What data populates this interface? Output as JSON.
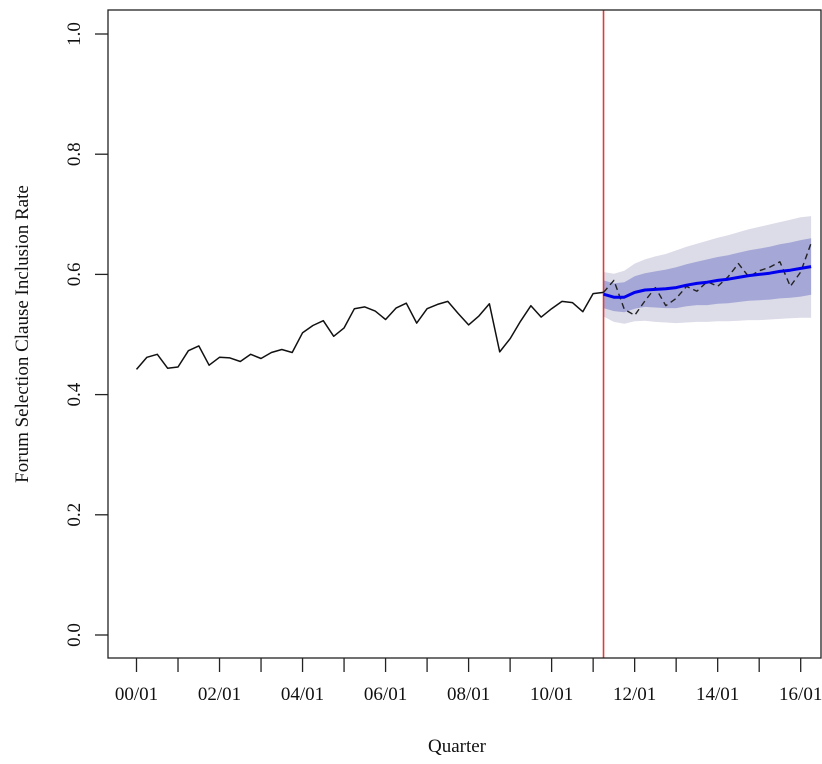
{
  "chart_data": {
    "type": "line",
    "title": "",
    "xlabel": "Quarter",
    "ylabel": "Forum Selection Clause Inclusion Rate",
    "xlim": [
      2000.0,
      2016.5
    ],
    "ylim": [
      0.0,
      1.0
    ],
    "x_ticks": [
      {
        "value": 2000.0,
        "label": "00/01"
      },
      {
        "value": 2002.0,
        "label": "02/01"
      },
      {
        "value": 2004.0,
        "label": "04/01"
      },
      {
        "value": 2006.0,
        "label": "06/01"
      },
      {
        "value": 2008.0,
        "label": "08/01"
      },
      {
        "value": 2010.0,
        "label": "10/01"
      },
      {
        "value": 2012.0,
        "label": "12/01"
      },
      {
        "value": 2014.0,
        "label": "14/01"
      },
      {
        "value": 2016.0,
        "label": "16/01"
      }
    ],
    "x_minor_ticks": [
      2001.0,
      2003.0,
      2005.0,
      2007.0,
      2009.0,
      2011.0,
      2013.0,
      2015.0
    ],
    "y_ticks": [
      {
        "value": 0.0,
        "label": "0.0"
      },
      {
        "value": 0.2,
        "label": "0.2"
      },
      {
        "value": 0.4,
        "label": "0.4"
      },
      {
        "value": 0.6,
        "label": "0.6"
      },
      {
        "value": 0.8,
        "label": "0.8"
      },
      {
        "value": 1.0,
        "label": "1.0"
      }
    ],
    "grid": false,
    "colors": {
      "observed": "#111111",
      "post_observed": "#222222",
      "forecast": "#0000ee",
      "band_outer": "#dcdbe8",
      "band_inner": "#a5a7d6",
      "cutoff_line": "#e03c3c"
    },
    "cutoff_x": 2011.25,
    "series": [
      {
        "style": "solid",
        "x": [
          2000.0,
          2000.25,
          2000.5,
          2000.75,
          2001.0,
          2001.25,
          2001.5,
          2001.75,
          2002.0,
          2002.25,
          2002.5,
          2002.75,
          2003.0,
          2003.25,
          2003.5,
          2003.75,
          2004.0,
          2004.25,
          2004.5,
          2004.75,
          2005.0,
          2005.25,
          2005.5,
          2005.75,
          2006.0,
          2006.25,
          2006.5,
          2006.75,
          2007.0,
          2007.25,
          2007.5,
          2007.75,
          2008.0,
          2008.25,
          2008.5,
          2008.75,
          2009.0,
          2009.25,
          2009.5,
          2009.75,
          2010.0,
          2010.25,
          2010.5,
          2010.75,
          2011.0,
          2011.25
        ],
        "y": [
          0.442,
          0.462,
          0.467,
          0.444,
          0.446,
          0.473,
          0.481,
          0.449,
          0.462,
          0.461,
          0.455,
          0.467,
          0.46,
          0.47,
          0.475,
          0.47,
          0.503,
          0.515,
          0.523,
          0.497,
          0.511,
          0.543,
          0.546,
          0.539,
          0.525,
          0.544,
          0.552,
          0.519,
          0.543,
          0.55,
          0.555,
          0.535,
          0.516,
          0.531,
          0.551,
          0.471,
          0.493,
          0.522,
          0.548,
          0.529,
          0.543,
          0.555,
          0.553,
          0.538,
          0.568,
          0.57
        ]
      },
      {
        "style": "dashed",
        "x": [
          2011.25,
          2011.5,
          2011.75,
          2012.0,
          2012.25,
          2012.5,
          2012.75,
          2013.0,
          2013.25,
          2013.5,
          2013.75,
          2014.0,
          2014.25,
          2014.5,
          2014.75,
          2015.0,
          2015.25,
          2015.5,
          2015.75,
          2016.0,
          2016.25
        ],
        "y": [
          0.57,
          0.59,
          0.542,
          0.532,
          0.556,
          0.578,
          0.548,
          0.56,
          0.58,
          0.572,
          0.588,
          0.58,
          0.596,
          0.618,
          0.596,
          0.606,
          0.612,
          0.621,
          0.58,
          0.604,
          0.652
        ]
      },
      {
        "style": "forecast",
        "x": [
          2011.25,
          2011.5,
          2011.75,
          2012.0,
          2012.25,
          2012.5,
          2012.75,
          2013.0,
          2013.25,
          2013.5,
          2013.75,
          2014.0,
          2014.25,
          2014.5,
          2014.75,
          2015.0,
          2015.25,
          2015.5,
          2015.75,
          2016.0,
          2016.25
        ],
        "y": [
          0.567,
          0.562,
          0.562,
          0.57,
          0.574,
          0.575,
          0.576,
          0.578,
          0.582,
          0.585,
          0.587,
          0.59,
          0.592,
          0.595,
          0.598,
          0.6,
          0.602,
          0.605,
          0.607,
          0.61,
          0.613
        ]
      }
    ],
    "bands": [
      {
        "level": "outer",
        "x": [
          2011.25,
          2011.5,
          2011.75,
          2012.0,
          2012.25,
          2012.5,
          2012.75,
          2013.0,
          2013.25,
          2013.5,
          2013.75,
          2014.0,
          2014.25,
          2014.5,
          2014.75,
          2015.0,
          2015.25,
          2015.5,
          2015.75,
          2016.0,
          2016.25
        ],
        "upper": [
          0.604,
          0.601,
          0.606,
          0.618,
          0.625,
          0.63,
          0.634,
          0.64,
          0.646,
          0.651,
          0.656,
          0.661,
          0.665,
          0.67,
          0.675,
          0.679,
          0.683,
          0.687,
          0.691,
          0.695,
          0.697
        ],
        "lower": [
          0.53,
          0.521,
          0.518,
          0.522,
          0.523,
          0.521,
          0.52,
          0.519,
          0.52,
          0.521,
          0.521,
          0.522,
          0.522,
          0.523,
          0.524,
          0.524,
          0.525,
          0.526,
          0.527,
          0.528,
          0.528
        ]
      },
      {
        "level": "inner",
        "x": [
          2011.25,
          2011.5,
          2011.75,
          2012.0,
          2012.25,
          2012.5,
          2012.75,
          2013.0,
          2013.25,
          2013.5,
          2013.75,
          2014.0,
          2014.25,
          2014.5,
          2014.75,
          2015.0,
          2015.25,
          2015.5,
          2015.75,
          2016.0,
          2016.25
        ],
        "upper": [
          0.59,
          0.585,
          0.587,
          0.597,
          0.602,
          0.605,
          0.608,
          0.612,
          0.617,
          0.621,
          0.625,
          0.629,
          0.632,
          0.636,
          0.64,
          0.643,
          0.646,
          0.65,
          0.653,
          0.657,
          0.66
        ],
        "lower": [
          0.544,
          0.539,
          0.537,
          0.543,
          0.546,
          0.545,
          0.544,
          0.544,
          0.547,
          0.549,
          0.549,
          0.551,
          0.552,
          0.554,
          0.556,
          0.557,
          0.558,
          0.56,
          0.561,
          0.563,
          0.566
        ]
      }
    ]
  }
}
